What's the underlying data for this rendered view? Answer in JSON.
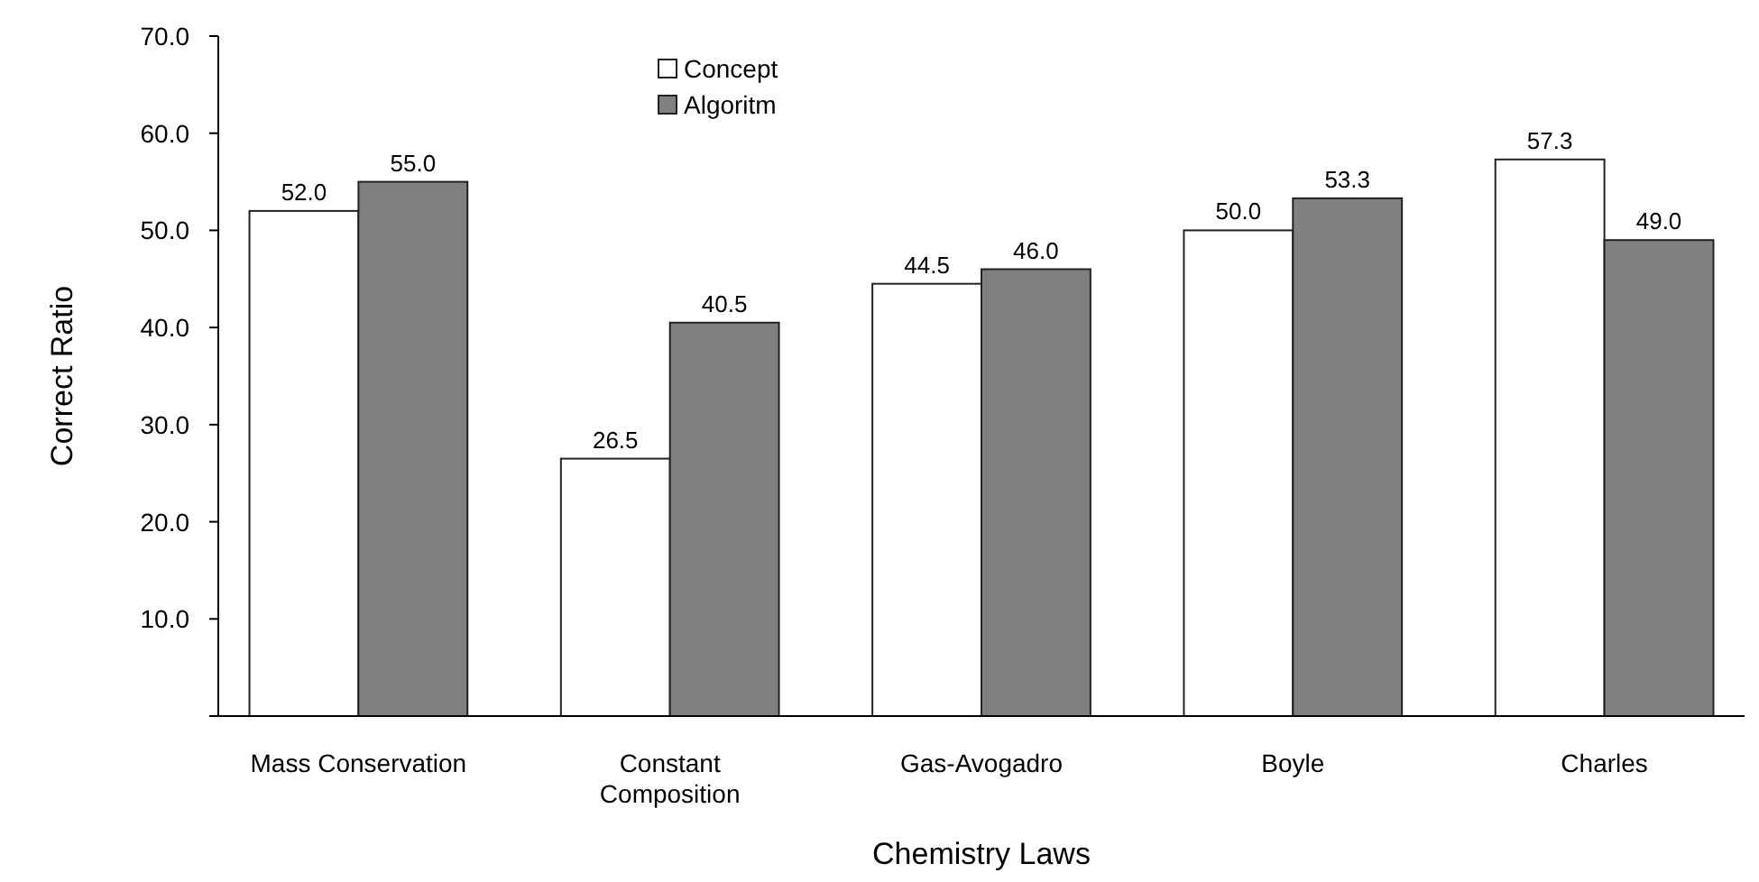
{
  "chart_data": {
    "type": "bar",
    "xlabel": "Chemistry Laws",
    "ylabel": "Correct Ratio",
    "categories": [
      "Mass Conservation",
      "Constant\nComposition",
      "Gas-Avogadro",
      "Boyle",
      "Charles"
    ],
    "series": [
      {
        "name": "Concept",
        "color": "#ffffff",
        "values": [
          52.0,
          26.5,
          44.5,
          50.0,
          57.3
        ],
        "value_labels": [
          "52.0",
          "26.5",
          "44.5",
          "50.0",
          "57.3"
        ]
      },
      {
        "name": "Algoritm",
        "color": "#808080",
        "values": [
          55.0,
          40.5,
          46.0,
          53.3,
          49.0
        ],
        "value_labels": [
          "55.0",
          "40.5",
          "46.0",
          "53.3",
          "49.0"
        ]
      }
    ],
    "ylim": [
      0,
      70
    ],
    "yticks": [
      {
        "value": 0,
        "label": null
      },
      {
        "value": 10,
        "label": "10.0"
      },
      {
        "value": 20,
        "label": "20.0"
      },
      {
        "value": 30,
        "label": "30.0"
      },
      {
        "value": 40,
        "label": "40.0"
      },
      {
        "value": 50,
        "label": "50.0"
      },
      {
        "value": 60,
        "label": "60.0"
      },
      {
        "value": 70,
        "label": "70.0"
      }
    ],
    "legend": "top",
    "grid": false
  }
}
